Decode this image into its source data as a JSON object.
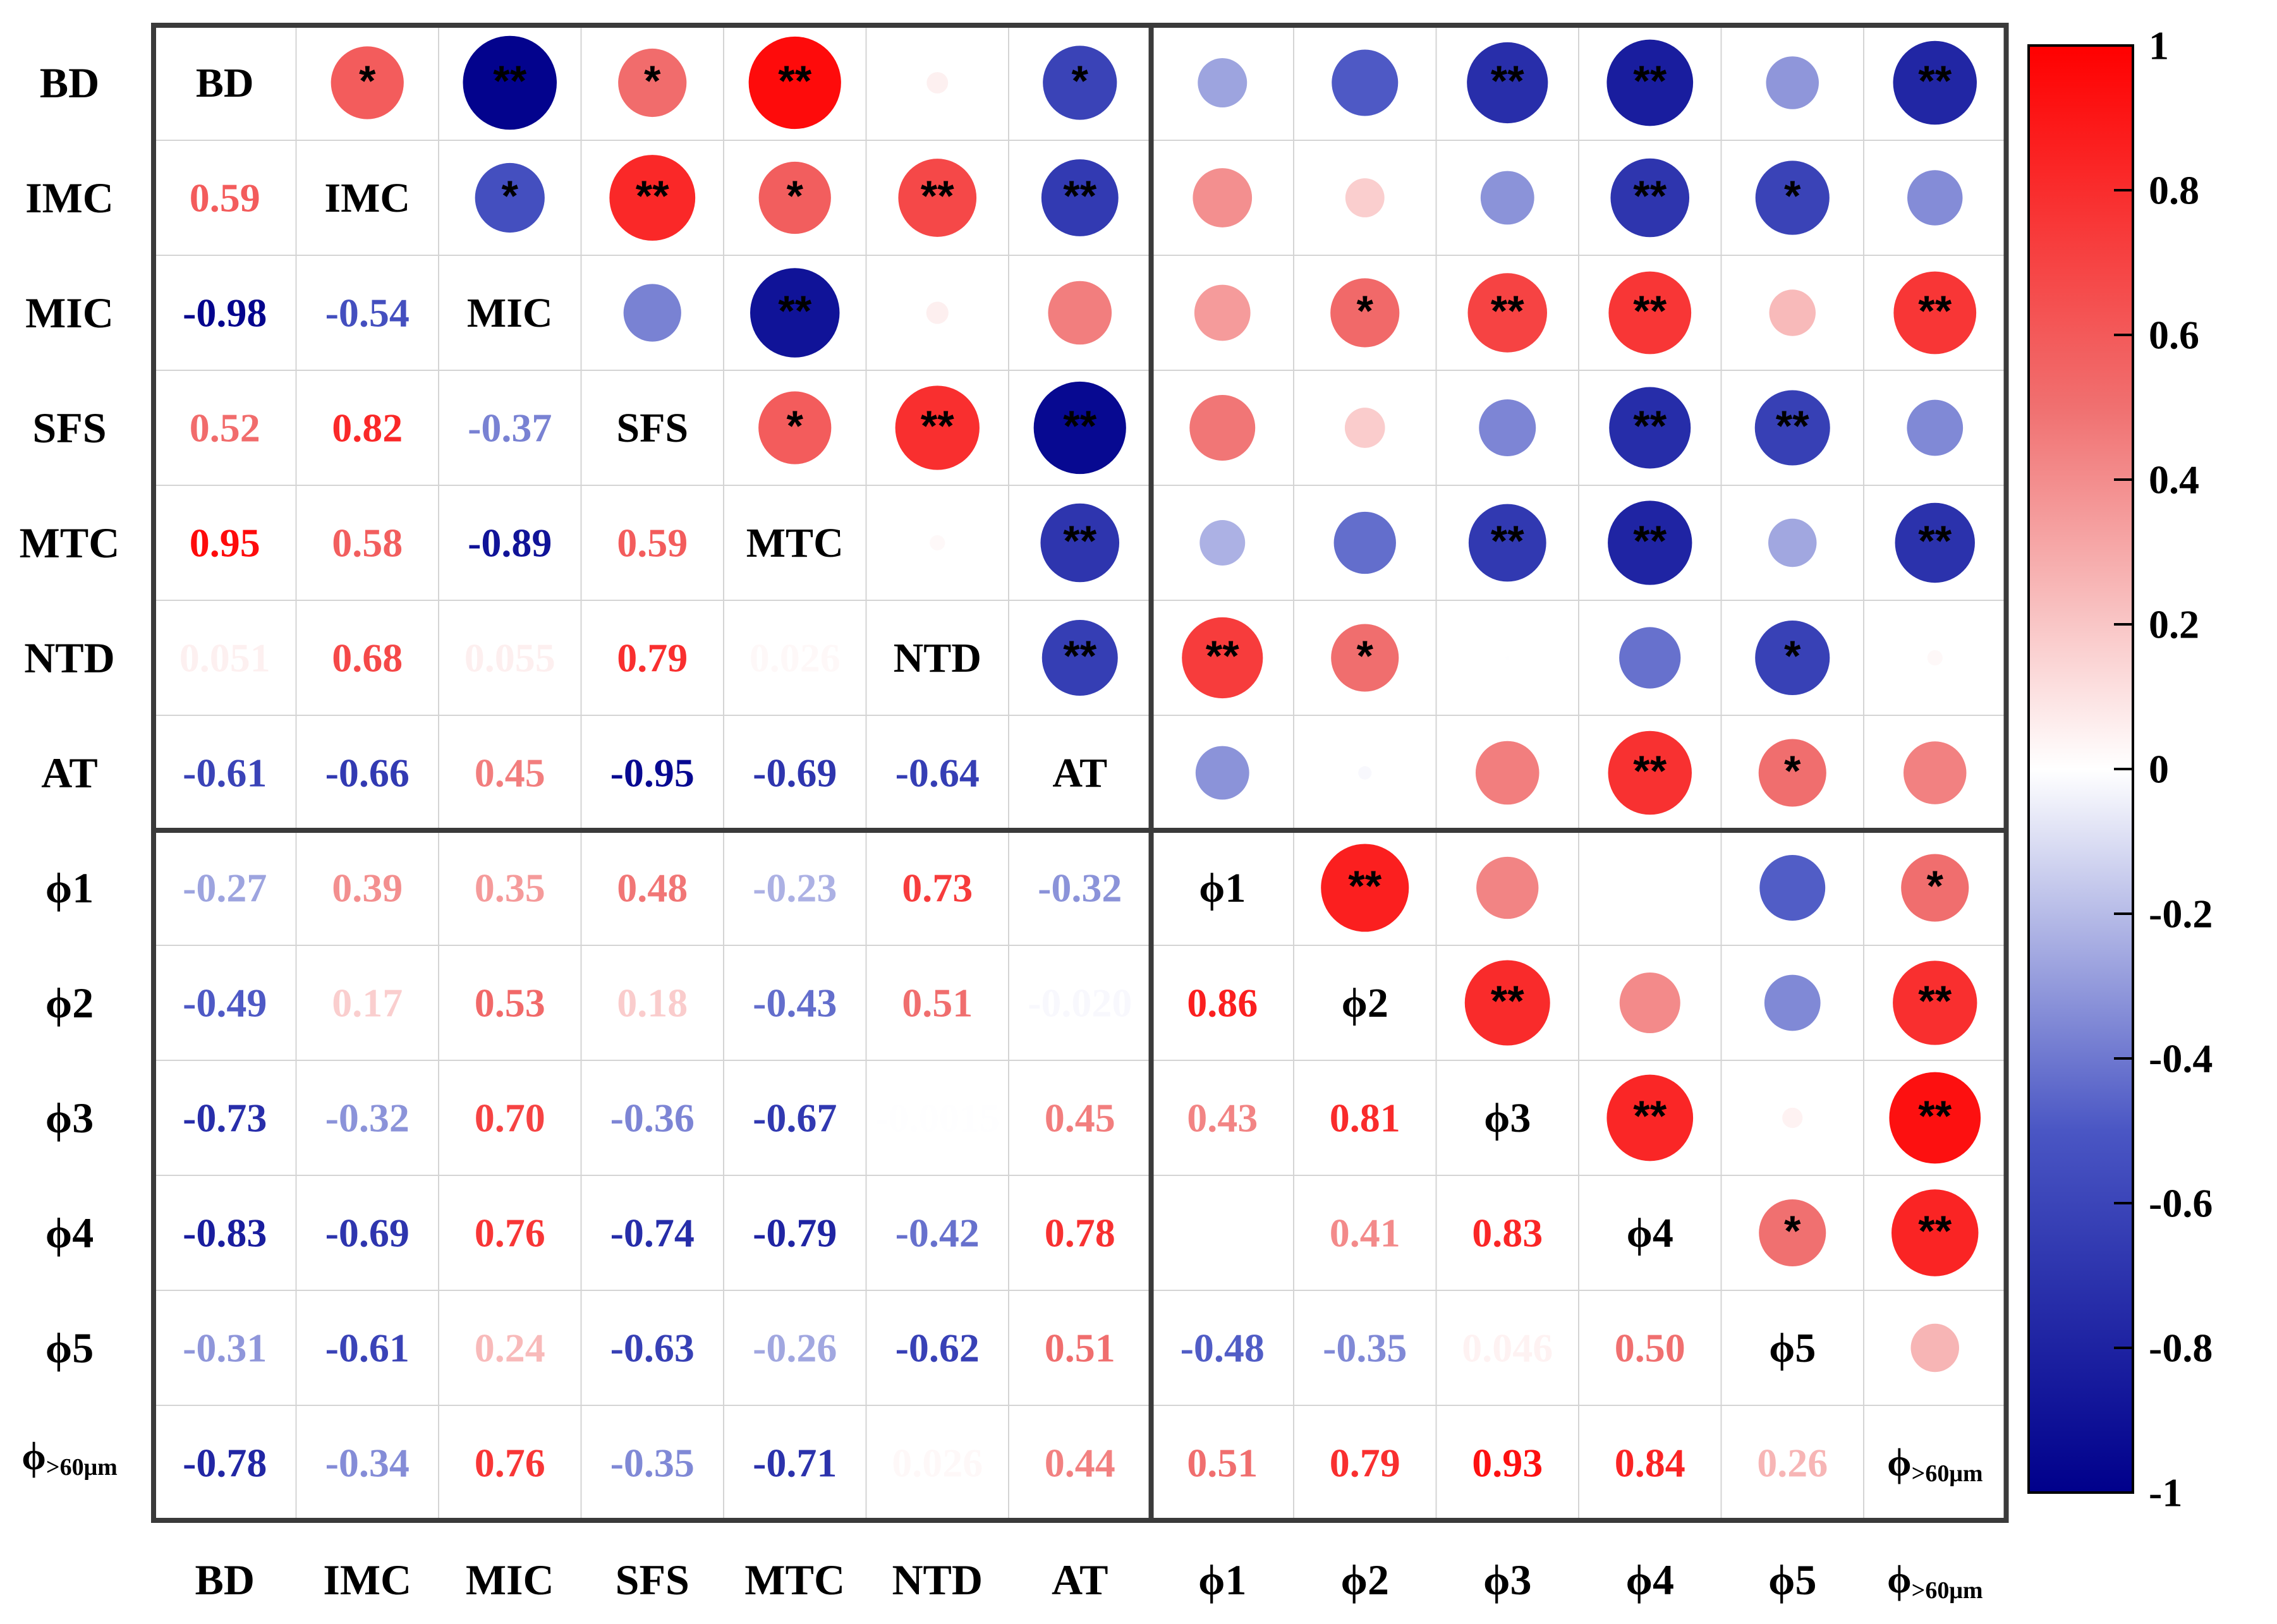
{
  "chart_data": {
    "type": "heatmap",
    "subtype": "correlation-matrix",
    "variables": [
      "BD",
      "IMC",
      "MIC",
      "SFS",
      "MTC",
      "NTD",
      "AT",
      "ϕ1",
      "ϕ2",
      "ϕ3",
      "ϕ4",
      "ϕ5",
      "ϕ>60μm"
    ],
    "variable_labels": [
      {
        "main": "BD",
        "sub": ""
      },
      {
        "main": "IMC",
        "sub": ""
      },
      {
        "main": "MIC",
        "sub": ""
      },
      {
        "main": "SFS",
        "sub": ""
      },
      {
        "main": "MTC",
        "sub": ""
      },
      {
        "main": "NTD",
        "sub": ""
      },
      {
        "main": "AT",
        "sub": ""
      },
      {
        "main": "ϕ1",
        "sub": ""
      },
      {
        "main": "ϕ2",
        "sub": ""
      },
      {
        "main": "ϕ3",
        "sub": ""
      },
      {
        "main": "ϕ4",
        "sub": ""
      },
      {
        "main": "ϕ5",
        "sub": ""
      },
      {
        "main": "ϕ",
        "sub": ">60μm"
      }
    ],
    "lower_triangle_labels": [
      [
        "0.59"
      ],
      [
        "-0.98",
        "-0.54"
      ],
      [
        "0.52",
        "0.82",
        "-0.37"
      ],
      [
        "0.95",
        "0.58",
        "-0.89",
        "0.59"
      ],
      [
        "0.051",
        "0.68",
        "0.055",
        "0.79",
        "0.026"
      ],
      [
        "-0.61",
        "-0.66",
        "0.45",
        "-0.95",
        "-0.69",
        "-0.64"
      ],
      [
        "-0.27",
        "0.39",
        "0.35",
        "0.48",
        "-0.23",
        "0.73",
        "-0.32"
      ],
      [
        "-0.49",
        "0.17",
        "0.53",
        "0.18",
        "-0.43",
        "0.51",
        "-0.020",
        "0.86"
      ],
      [
        "-0.73",
        "-0.32",
        "0.70",
        "-0.36",
        "-0.67",
        "-0.0015",
        "0.45",
        "0.43",
        "0.81"
      ],
      [
        "-0.83",
        "-0.69",
        "0.76",
        "-0.74",
        "-0.79",
        "-0.42",
        "0.78",
        "",
        "0.41",
        "0.83"
      ],
      [
        "-0.31",
        "-0.61",
        "0.24",
        "-0.63",
        "-0.26",
        "-0.62",
        "0.51",
        "-0.48",
        "-0.35",
        "0.046",
        "0.50"
      ],
      [
        "-0.78",
        "-0.34",
        "0.76",
        "-0.35",
        "-0.71",
        "0.026",
        "0.44",
        "0.51",
        "0.79",
        "0.93",
        "0.84",
        "0.26"
      ]
    ],
    "lower_triangle_values": [
      [
        0.59
      ],
      [
        -0.98,
        -0.54
      ],
      [
        0.52,
        0.82,
        -0.37
      ],
      [
        0.95,
        0.58,
        -0.89,
        0.59
      ],
      [
        0.051,
        0.68,
        0.055,
        0.79,
        0.026
      ],
      [
        -0.61,
        -0.66,
        0.45,
        -0.95,
        -0.69,
        -0.64
      ],
      [
        -0.27,
        0.39,
        0.35,
        0.48,
        -0.23,
        0.73,
        -0.32
      ],
      [
        -0.49,
        0.17,
        0.53,
        0.18,
        -0.43,
        0.51,
        -0.02,
        0.86
      ],
      [
        -0.73,
        -0.32,
        0.7,
        -0.36,
        -0.67,
        -0.0015,
        0.45,
        0.43,
        0.81
      ],
      [
        -0.83,
        -0.69,
        0.76,
        -0.74,
        -0.79,
        -0.42,
        0.78,
        0.0,
        0.41,
        0.83
      ],
      [
        -0.31,
        -0.61,
        0.24,
        -0.63,
        -0.26,
        -0.62,
        0.51,
        -0.48,
        -0.35,
        0.046,
        0.5
      ],
      [
        -0.78,
        -0.34,
        0.76,
        -0.35,
        -0.71,
        0.026,
        0.44,
        0.51,
        0.79,
        0.93,
        0.84,
        0.26
      ]
    ],
    "upper_triangle_significance": [
      [
        "*",
        "**",
        "*",
        "**",
        "",
        "*",
        "",
        "",
        "**",
        "**",
        "",
        "**"
      ],
      [
        "*",
        "**",
        "*",
        "**",
        "**",
        "",
        "",
        "",
        "**",
        "*",
        ""
      ],
      [
        "",
        "**",
        "",
        "",
        "",
        "*",
        "**",
        "**",
        "",
        "**"
      ],
      [
        "*",
        "**",
        "**",
        "",
        "",
        "",
        "**",
        "**",
        ""
      ],
      [
        "",
        "**",
        "",
        "",
        "**",
        "**",
        "",
        "**"
      ],
      [
        "**",
        "**",
        "*",
        "",
        "",
        "*",
        ""
      ],
      [
        "",
        "",
        "",
        "**",
        "*",
        ""
      ],
      [
        "**",
        "",
        "",
        "",
        "*"
      ],
      [
        "**",
        "",
        "",
        "**"
      ],
      [
        "**",
        "",
        "**"
      ],
      [
        "*",
        "**"
      ],
      [
        ""
      ]
    ],
    "significance_marks": {
      "p_lt_0.05": "*",
      "p_lt_0.01": "**"
    },
    "colorbar": {
      "min": -1,
      "max": 1,
      "ticks": [
        "1",
        "0.8",
        "0.6",
        "0.4",
        "0.2",
        "0",
        "-0.2",
        "-0.4",
        "-0.6",
        "-0.8",
        "-1"
      ],
      "colors": {
        "negative": "#00008b",
        "mid_negative": "#4a56c4",
        "zero": "#ffffff",
        "mid_positive": "#f07070",
        "positive": "#ff0000"
      }
    },
    "groups": [
      {
        "members": [
          "BD",
          "IMC",
          "MIC",
          "SFS",
          "MTC",
          "NTD",
          "AT"
        ]
      },
      {
        "members": [
          "ϕ1",
          "ϕ2",
          "ϕ3",
          "ϕ4",
          "ϕ5",
          "ϕ>60μm"
        ]
      }
    ],
    "title": "",
    "xlabel": "",
    "ylabel": ""
  }
}
